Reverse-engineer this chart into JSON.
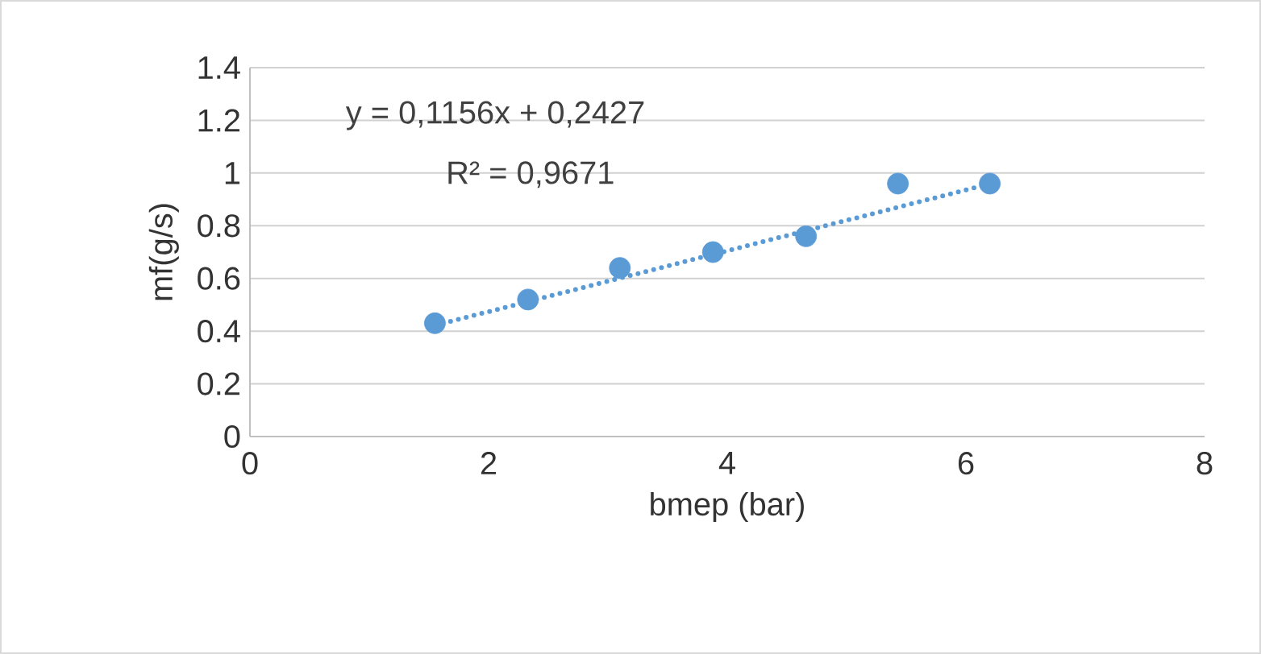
{
  "chart_data": {
    "type": "scatter",
    "xlabel": "bmep (bar)",
    "ylabel": "mf(g/s)",
    "series": [
      {
        "color": "#5b9bd5",
        "x": [
          1.55,
          2.33,
          3.1,
          3.88,
          4.66,
          5.43,
          6.2
        ],
        "values": [
          0.43,
          0.52,
          0.64,
          0.7,
          0.76,
          0.96,
          0.96
        ],
        "marker": "circle"
      },
      {
        "type": "line",
        "color": "#5b9bd5",
        "x": [
          1.55,
          6.2
        ],
        "values": [
          0.422,
          0.959
        ],
        "line_style": "dotted",
        "marker": "none"
      }
    ],
    "xlim": [
      0,
      8
    ],
    "xticks": [
      0,
      2,
      4,
      6,
      8
    ],
    "ylim": [
      0,
      1.4
    ],
    "yticks": [
      0,
      0.2,
      0.4,
      0.6,
      0.8,
      1,
      1.2,
      1.4
    ],
    "grid": "y",
    "annotations": [
      "y = 0,1156x + 0,2427",
      "R² = 0,9671"
    ]
  }
}
